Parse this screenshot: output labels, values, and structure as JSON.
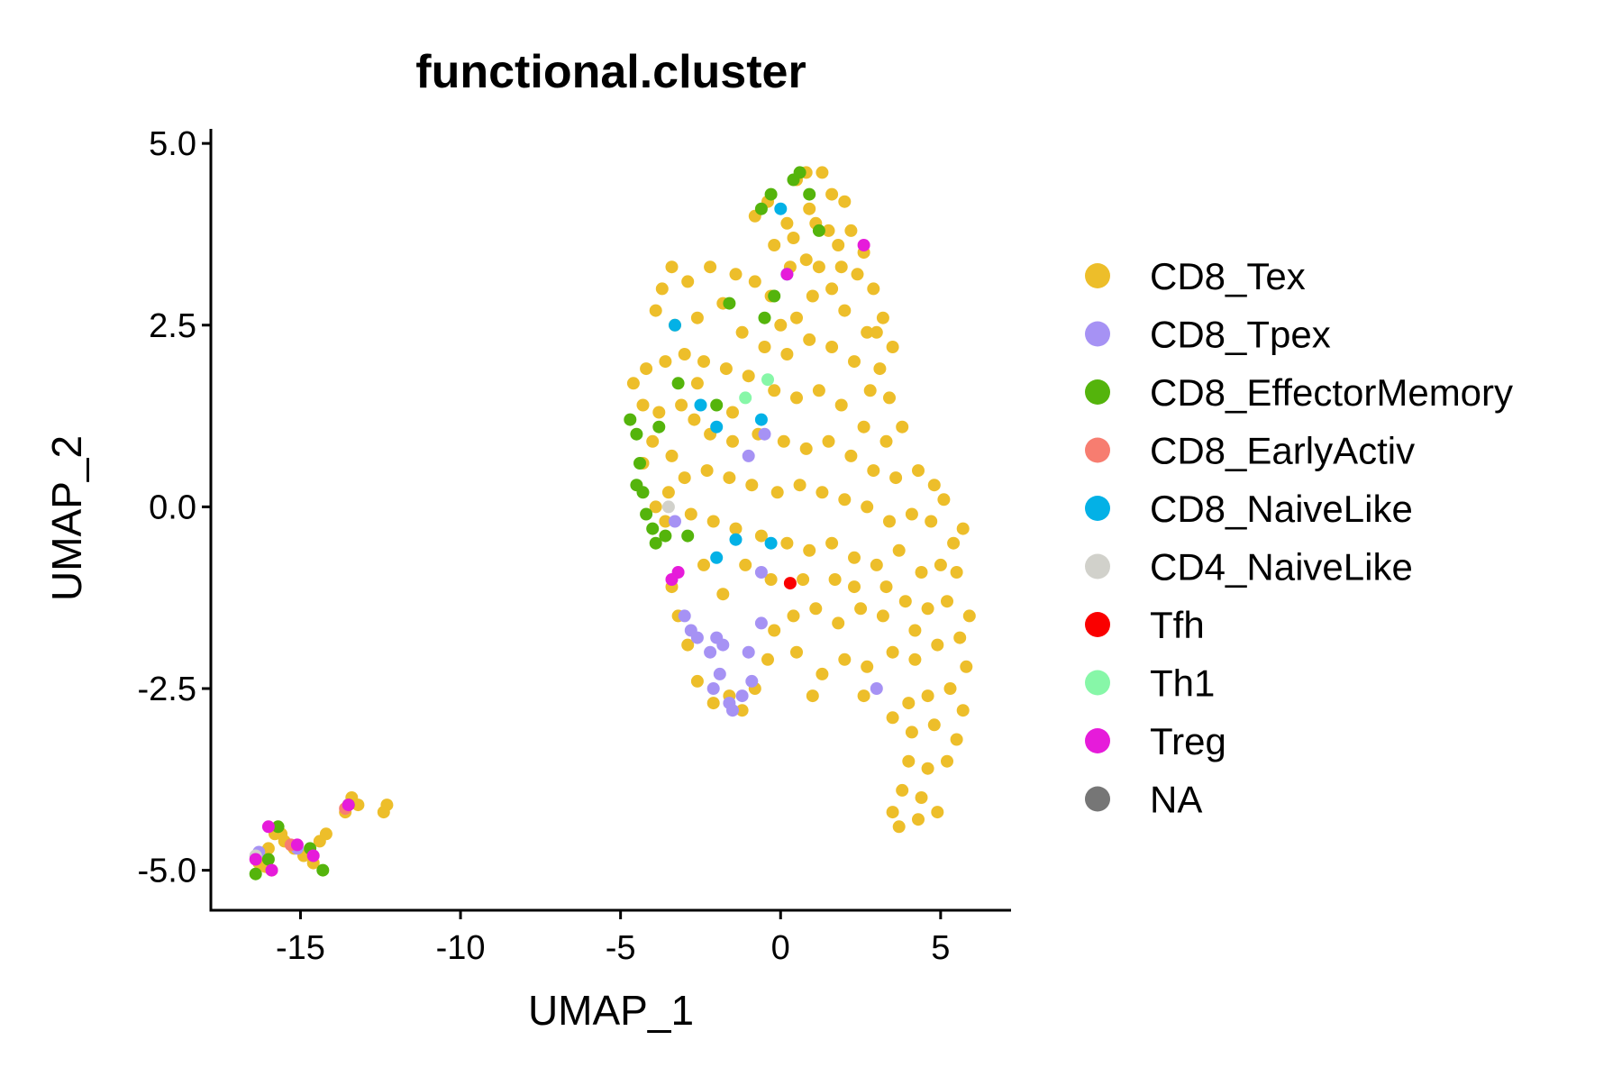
{
  "chart_data": {
    "type": "scatter",
    "title": "functional.cluster",
    "xlabel": "UMAP_1",
    "ylabel": "UMAP_2",
    "xlim": [
      -17.8,
      7.2
    ],
    "ylim": [
      -5.55,
      5.2
    ],
    "x_ticks": [
      -15,
      -10,
      -5,
      0,
      5
    ],
    "x_tick_labels": [
      "-15",
      "-10",
      "-5",
      "0",
      "5"
    ],
    "y_ticks": [
      -5.0,
      -2.5,
      0.0,
      2.5,
      5.0
    ],
    "y_tick_labels": [
      "-5.0",
      "-2.5",
      "0.0",
      "2.5",
      "5.0"
    ],
    "grid": false,
    "legend_position": "right",
    "series": [
      {
        "name": "CD8_Tex",
        "color": "#EDBE2A",
        "points": [
          [
            -16.3,
            -4.9
          ],
          [
            -16.0,
            -4.7
          ],
          [
            -15.8,
            -4.5
          ],
          [
            -15.5,
            -4.6
          ],
          [
            -15.2,
            -4.7
          ],
          [
            -14.9,
            -4.8
          ],
          [
            -14.6,
            -4.9
          ],
          [
            -14.4,
            -4.6
          ],
          [
            -14.2,
            -4.5
          ],
          [
            -15.9,
            -5.0
          ],
          [
            -15.6,
            -4.5
          ],
          [
            -13.6,
            -4.2
          ],
          [
            -13.4,
            -4.0
          ],
          [
            -13.2,
            -4.1
          ],
          [
            -12.4,
            -4.2
          ],
          [
            -12.3,
            -4.1
          ],
          [
            -16.1,
            -4.95
          ],
          [
            0.5,
            4.5
          ],
          [
            0.8,
            4.6
          ],
          [
            1.3,
            4.6
          ],
          [
            1.6,
            4.3
          ],
          [
            2.0,
            4.2
          ],
          [
            0.9,
            4.1
          ],
          [
            1.1,
            3.9
          ],
          [
            -0.8,
            4.0
          ],
          [
            -0.4,
            4.2
          ],
          [
            0.2,
            3.9
          ],
          [
            1.5,
            3.8
          ],
          [
            2.2,
            3.8
          ],
          [
            2.6,
            3.5
          ],
          [
            1.8,
            3.6
          ],
          [
            0.4,
            3.7
          ],
          [
            -0.2,
            3.6
          ],
          [
            0.3,
            3.3
          ],
          [
            0.8,
            3.4
          ],
          [
            1.2,
            3.3
          ],
          [
            1.6,
            3.0
          ],
          [
            2.4,
            3.2
          ],
          [
            2.9,
            3.0
          ],
          [
            3.2,
            2.6
          ],
          [
            3.5,
            2.2
          ],
          [
            3.1,
            1.9
          ],
          [
            2.7,
            2.4
          ],
          [
            2.0,
            2.7
          ],
          [
            1.0,
            2.9
          ],
          [
            0.5,
            2.6
          ],
          [
            -0.3,
            2.9
          ],
          [
            -0.8,
            3.1
          ],
          [
            -1.4,
            3.2
          ],
          [
            -2.2,
            3.3
          ],
          [
            -2.9,
            3.1
          ],
          [
            -3.4,
            3.3
          ],
          [
            -3.7,
            3.0
          ],
          [
            -3.9,
            2.7
          ],
          [
            -3.3,
            2.5
          ],
          [
            -2.6,
            2.6
          ],
          [
            -1.8,
            2.8
          ],
          [
            -1.2,
            2.4
          ],
          [
            -0.5,
            2.2
          ],
          [
            0.2,
            2.1
          ],
          [
            0.9,
            2.3
          ],
          [
            1.6,
            2.2
          ],
          [
            2.3,
            2.0
          ],
          [
            2.8,
            1.6
          ],
          [
            3.4,
            1.5
          ],
          [
            3.8,
            1.1
          ],
          [
            3.3,
            0.9
          ],
          [
            2.6,
            1.1
          ],
          [
            1.9,
            1.4
          ],
          [
            1.2,
            1.6
          ],
          [
            0.5,
            1.5
          ],
          [
            -0.2,
            1.6
          ],
          [
            -1.0,
            1.8
          ],
          [
            -1.7,
            1.9
          ],
          [
            -2.4,
            2.0
          ],
          [
            -3.0,
            2.1
          ],
          [
            -3.6,
            2.0
          ],
          [
            -4.2,
            1.9
          ],
          [
            -4.6,
            1.7
          ],
          [
            -4.3,
            1.4
          ],
          [
            -3.8,
            1.3
          ],
          [
            -3.1,
            1.4
          ],
          [
            -2.7,
            1.2
          ],
          [
            -2.2,
            1.0
          ],
          [
            -1.5,
            0.9
          ],
          [
            -0.7,
            1.0
          ],
          [
            0.1,
            0.9
          ],
          [
            0.8,
            0.8
          ],
          [
            1.5,
            0.9
          ],
          [
            2.2,
            0.7
          ],
          [
            2.9,
            0.5
          ],
          [
            3.6,
            0.4
          ],
          [
            4.3,
            0.5
          ],
          [
            4.8,
            0.3
          ],
          [
            5.1,
            0.1
          ],
          [
            4.7,
            -0.2
          ],
          [
            4.1,
            -0.1
          ],
          [
            3.4,
            -0.2
          ],
          [
            2.7,
            0.0
          ],
          [
            2.0,
            0.1
          ],
          [
            1.3,
            0.2
          ],
          [
            0.6,
            0.3
          ],
          [
            -0.1,
            0.2
          ],
          [
            -0.9,
            0.3
          ],
          [
            -1.6,
            0.4
          ],
          [
            -2.3,
            0.5
          ],
          [
            -3.0,
            0.4
          ],
          [
            -3.5,
            0.2
          ],
          [
            -3.9,
            0.0
          ],
          [
            -4.3,
            0.6
          ],
          [
            -4.0,
            0.9
          ],
          [
            -3.4,
            0.7
          ],
          [
            -2.8,
            -0.1
          ],
          [
            -2.1,
            -0.2
          ],
          [
            -1.4,
            -0.3
          ],
          [
            -0.6,
            -0.4
          ],
          [
            0.2,
            -0.5
          ],
          [
            0.9,
            -0.6
          ],
          [
            1.6,
            -0.5
          ],
          [
            2.3,
            -0.7
          ],
          [
            3.0,
            -0.8
          ],
          [
            3.7,
            -0.6
          ],
          [
            4.4,
            -0.9
          ],
          [
            5.0,
            -0.8
          ],
          [
            5.5,
            -0.9
          ],
          [
            5.2,
            -1.3
          ],
          [
            4.6,
            -1.4
          ],
          [
            3.9,
            -1.3
          ],
          [
            3.2,
            -1.5
          ],
          [
            2.5,
            -1.4
          ],
          [
            1.8,
            -1.6
          ],
          [
            1.1,
            -1.4
          ],
          [
            0.4,
            -1.5
          ],
          [
            -0.2,
            -1.7
          ],
          [
            -0.4,
            -2.1
          ],
          [
            -0.8,
            -2.5
          ],
          [
            -1.2,
            -2.8
          ],
          [
            -1.6,
            -2.6
          ],
          [
            -2.1,
            -2.7
          ],
          [
            -2.6,
            -2.4
          ],
          [
            -2.9,
            -1.9
          ],
          [
            -3.2,
            -1.5
          ],
          [
            -3.4,
            -1.1
          ],
          [
            0.5,
            -2.0
          ],
          [
            1.3,
            -2.3
          ],
          [
            2.0,
            -2.1
          ],
          [
            2.7,
            -2.2
          ],
          [
            3.5,
            -2.0
          ],
          [
            4.2,
            -2.1
          ],
          [
            4.9,
            -1.9
          ],
          [
            5.6,
            -1.8
          ],
          [
            5.8,
            -2.2
          ],
          [
            5.3,
            -2.5
          ],
          [
            4.6,
            -2.6
          ],
          [
            4.0,
            -2.7
          ],
          [
            3.5,
            -2.9
          ],
          [
            4.1,
            -3.1
          ],
          [
            4.8,
            -3.0
          ],
          [
            5.5,
            -3.2
          ],
          [
            5.2,
            -3.5
          ],
          [
            4.6,
            -3.6
          ],
          [
            4.0,
            -3.5
          ],
          [
            3.8,
            -3.9
          ],
          [
            4.4,
            -4.0
          ],
          [
            4.9,
            -4.2
          ],
          [
            4.3,
            -4.3
          ],
          [
            3.7,
            -4.4
          ],
          [
            3.5,
            -4.2
          ],
          [
            5.7,
            -2.8
          ],
          [
            5.9,
            -1.5
          ],
          [
            5.4,
            -0.5
          ],
          [
            5.7,
            -0.3
          ],
          [
            1.7,
            -1.0
          ],
          [
            2.6,
            -2.6
          ],
          [
            1.9,
            3.3
          ],
          [
            0.0,
            2.5
          ],
          [
            -1.5,
            1.3
          ],
          [
            -2.6,
            1.7
          ],
          [
            -0.3,
            -1.0
          ],
          [
            0.7,
            -1.0
          ],
          [
            3.0,
            2.4
          ],
          [
            1.0,
            -2.6
          ],
          [
            2.3,
            -1.1
          ],
          [
            3.3,
            -1.1
          ],
          [
            4.2,
            -1.7
          ],
          [
            -3.6,
            -0.2
          ],
          [
            -2.4,
            -0.8
          ],
          [
            -1.8,
            -1.2
          ],
          [
            -1.1,
            -0.8
          ]
        ]
      },
      {
        "name": "CD8_Tpex",
        "color": "#A692F4",
        "points": [
          [
            -16.3,
            -4.75
          ],
          [
            -15.1,
            -4.7
          ],
          [
            -3.3,
            -0.2
          ],
          [
            -3.0,
            -1.5
          ],
          [
            -2.6,
            -1.8
          ],
          [
            -2.2,
            -2.0
          ],
          [
            -1.9,
            -2.3
          ],
          [
            -1.6,
            -2.7
          ],
          [
            -1.2,
            -2.6
          ],
          [
            -0.9,
            -2.4
          ],
          [
            -1.5,
            -2.8
          ],
          [
            -2.1,
            -2.5
          ],
          [
            -2.8,
            -1.7
          ],
          [
            -1.8,
            -1.9
          ],
          [
            -0.6,
            -1.6
          ],
          [
            -1.0,
            -2.0
          ],
          [
            -0.6,
            -0.9
          ],
          [
            -1.0,
            0.7
          ],
          [
            -0.5,
            1.0
          ],
          [
            3.0,
            -2.5
          ],
          [
            -2.0,
            -1.8
          ]
        ]
      },
      {
        "name": "CD8_EffectorMemory",
        "color": "#54B40C",
        "points": [
          [
            -16.4,
            -5.05
          ],
          [
            -16.0,
            -4.85
          ],
          [
            -15.7,
            -4.4
          ],
          [
            -14.7,
            -4.7
          ],
          [
            -14.3,
            -5.0
          ],
          [
            -13.5,
            -4.1
          ],
          [
            0.4,
            4.5
          ],
          [
            0.6,
            4.6
          ],
          [
            -0.3,
            4.3
          ],
          [
            -0.6,
            4.1
          ],
          [
            0.9,
            4.3
          ],
          [
            1.2,
            3.8
          ],
          [
            -1.6,
            2.8
          ],
          [
            -0.5,
            2.6
          ],
          [
            -4.7,
            1.2
          ],
          [
            -4.5,
            1.0
          ],
          [
            -4.4,
            0.6
          ],
          [
            -4.5,
            0.3
          ],
          [
            -4.3,
            0.2
          ],
          [
            -4.2,
            -0.1
          ],
          [
            -4.0,
            -0.3
          ],
          [
            -3.9,
            -0.5
          ],
          [
            -3.6,
            -0.4
          ],
          [
            -3.2,
            1.7
          ],
          [
            -2.0,
            1.4
          ],
          [
            -3.8,
            1.1
          ],
          [
            -2.9,
            -0.4
          ],
          [
            -0.2,
            2.9
          ]
        ]
      },
      {
        "name": "CD8_EarlyActiv",
        "color": "#F77D70",
        "points": [
          [
            -13.6,
            -4.15
          ],
          [
            -15.3,
            -4.65
          ]
        ]
      },
      {
        "name": "CD8_NaiveLike",
        "color": "#03B1E6",
        "points": [
          [
            0.2,
            3.2
          ],
          [
            -3.3,
            2.5
          ],
          [
            -2.5,
            1.4
          ],
          [
            -2.0,
            1.1
          ],
          [
            -1.4,
            -0.45
          ],
          [
            -2.0,
            -0.7
          ],
          [
            -0.3,
            -0.5
          ],
          [
            -0.6,
            1.2
          ],
          [
            0.0,
            4.1
          ]
        ]
      },
      {
        "name": "CD4_NaiveLike",
        "color": "#D1D1CB",
        "points": [
          [
            -16.4,
            -4.8
          ],
          [
            -3.5,
            0.0
          ]
        ]
      },
      {
        "name": "Tfh",
        "color": "#FA0000",
        "points": [
          [
            0.3,
            -1.05
          ]
        ]
      },
      {
        "name": "Th1",
        "color": "#87F7A8",
        "points": [
          [
            -0.4,
            1.75
          ],
          [
            -1.1,
            1.5
          ]
        ]
      },
      {
        "name": "Treg",
        "color": "#E61BDA",
        "points": [
          [
            -16.4,
            -4.85
          ],
          [
            -15.9,
            -5.0
          ],
          [
            -15.1,
            -4.65
          ],
          [
            -14.6,
            -4.8
          ],
          [
            -13.5,
            -4.1
          ],
          [
            -3.2,
            -0.9
          ],
          [
            -3.4,
            -1.0
          ],
          [
            0.2,
            3.2
          ],
          [
            2.6,
            3.6
          ],
          [
            -16.0,
            -4.4
          ]
        ]
      },
      {
        "name": "NA",
        "color": "#767676",
        "points": []
      }
    ]
  }
}
